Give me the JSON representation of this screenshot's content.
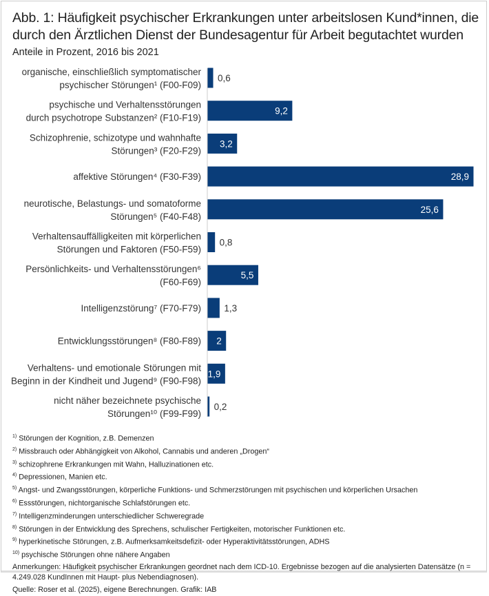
{
  "title": "Abb. 1: Häufigkeit psychischer Erkrankungen unter arbeitslosen Kund*innen, die durch den Ärztlichen Dienst der Bundesagentur für Arbeit begutachtet wurden",
  "subtitle": "Anteile in Prozent, 2016 bis 2021",
  "chart_data": {
    "type": "bar",
    "orientation": "horizontal",
    "title": "Abb. 1: Häufigkeit psychischer Erkrankungen unter arbeitslosen Kund*innen, die durch den Ärztlichen Dienst der Bundesagentur für Arbeit begutachtet wurden",
    "subtitle": "Anteile in Prozent, 2016 bis 2021",
    "categories": [
      [
        "organische, einschließlich symptomatischer",
        "psychischer Störungen¹ (F00-F09)"
      ],
      [
        "psychische und Verhaltensstörungen",
        "durch psychotrope Substanzen² (F10-F19)"
      ],
      [
        "Schizophrenie, schizotype und wahnhafte",
        "Störungen³ (F20-F29)"
      ],
      [
        "affektive Störungen⁴ (F30-F39)"
      ],
      [
        "neurotische, Belastungs- und somatoforme",
        "Störungen⁵ (F40-F48)"
      ],
      [
        "Verhaltensauffälligkeiten mit körperlichen",
        "Störungen und Faktoren (F50-F59)"
      ],
      [
        "Persönlichkeits- und Verhaltensstörungen⁶",
        "(F60-F69)"
      ],
      [
        "Intelligenzstörung⁷ (F70-F79)"
      ],
      [
        "Entwicklungsstörungen⁸ (F80-F89)"
      ],
      [
        "Verhaltens- und emotionale Störungen mit",
        "Beginn in der Kindheit und Jugend⁹ (F90-F98)"
      ],
      [
        "nicht näher bezeichnete psychische",
        "Störungen¹⁰ (F99-F99)"
      ]
    ],
    "values": [
      0.6,
      9.2,
      3.2,
      28.9,
      25.6,
      0.8,
      5.5,
      1.3,
      2,
      1.9,
      0.2
    ],
    "value_labels": [
      "0,6",
      "9,2",
      "3,2",
      "28,9",
      "25,6",
      "0,8",
      "5,5",
      "1,3",
      "2",
      "1,9",
      "0,2"
    ],
    "xlim": [
      0,
      28.9
    ],
    "grid": false,
    "bar_color": "#0a3d79"
  },
  "footnotes": [
    {
      "mark": "1)",
      "text": "Störungen der Kognition, z.B. Demenzen"
    },
    {
      "mark": "2)",
      "text": "Missbrauch oder Abhängigkeit von Alkohol, Cannabis und anderen „Drogen“"
    },
    {
      "mark": "3)",
      "text": "schizophrene Erkrankungen mit Wahn, Halluzinationen etc."
    },
    {
      "mark": "4)",
      "text": "Depressionen, Manien etc."
    },
    {
      "mark": "5)",
      "text": "Angst- und Zwangsstörungen, körperliche Funktions- und Schmerzstörungen mit psychischen und körperlichen Ursachen"
    },
    {
      "mark": "6)",
      "text": "Essstörungen, nichtorganische Schlafstörungen etc."
    },
    {
      "mark": "7)",
      "text": "Intelligenzminderungen unterschiedlicher Schweregrade"
    },
    {
      "mark": "8)",
      "text": "Störungen in der Entwicklung des Sprechens, schulischer Fertigkeiten, motorischer Funktionen etc."
    },
    {
      "mark": "9)",
      "text": "hyperkinetische Störungen, z.B. Aufmerksamkeitsdefizit- oder Hyperaktivitätsstörungen, ADHS"
    },
    {
      "mark": "10)",
      "text": "psychische Störungen ohne nähere Angaben"
    }
  ],
  "remarks": "Anmerkungen: Häufigkeit psychischer Erkrankungen geordnet nach dem ICD-10. Ergebnisse bezogen auf die analysierten Datensätze (n = 4.249.028 KundInnen mit Haupt- plus Nebendiagnosen).",
  "source": "Quelle: Roser et al. (2025), eigene Berechnungen. Grafik: IAB"
}
